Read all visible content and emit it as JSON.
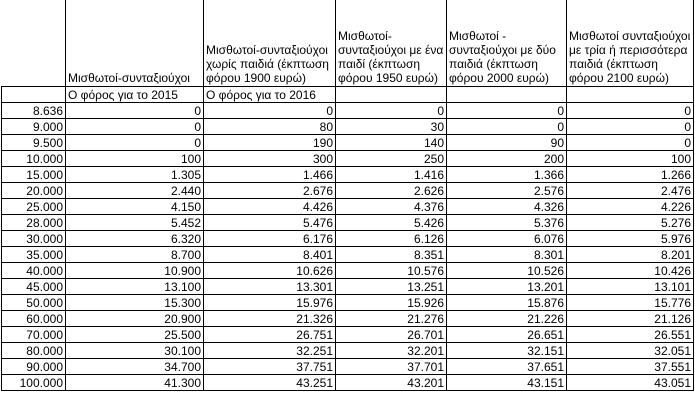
{
  "header": {
    "columns": [
      "",
      "Μισθωτοί-συνταξιούχοι",
      "Μισθωτοί-συνταξιούχοι χωρίς παιδιά (έκπτωση φόρου 1900 ευρώ)",
      "Μισθωτοί-συνταξιούχοι με ένα παιδί (έκπτωση φόρου 1950 ευρώ)",
      "Μισθωτοί - συνταξιούχοι με δύο παιδιά (έκπτωση φόρου 2000 ευρώ)",
      "Μισθωτοί συνταξιούχοι με τρία ή περισσότερα παιδιά (έκπτωση φόρου 2100 ευρώ)"
    ],
    "subheaders": [
      "",
      "Ο φόρος για το 2015",
      "Ο φόρος για το 2016",
      "",
      "",
      ""
    ]
  },
  "rows": [
    [
      "8.636",
      "0",
      "0",
      "0",
      "0",
      "0"
    ],
    [
      "9.000",
      "0",
      "80",
      "30",
      "0",
      "0"
    ],
    [
      "9.500",
      "0",
      "190",
      "140",
      "90",
      "0"
    ],
    [
      "10.000",
      "100",
      "300",
      "250",
      "200",
      "100"
    ],
    [
      "15.000",
      "1.305",
      "1.466",
      "1.416",
      "1.366",
      "1.266"
    ],
    [
      "20.000",
      "2.440",
      "2.676",
      "2.626",
      "2.576",
      "2.476"
    ],
    [
      "25.000",
      "4.150",
      "4.426",
      "4.376",
      "4.326",
      "4.226"
    ],
    [
      "28.000",
      "5.452",
      "5.476",
      "5.426",
      "5.376",
      "5.276"
    ],
    [
      "30.000",
      "6.320",
      "6.176",
      "6.126",
      "6.076",
      "5.976"
    ],
    [
      "35.000",
      "8.700",
      "8.401",
      "8.351",
      "8.301",
      "8.201"
    ],
    [
      "40.000",
      "10.900",
      "10.626",
      "10.576",
      "10.526",
      "10.426"
    ],
    [
      "45.000",
      "13.100",
      "13.301",
      "13.251",
      "13.201",
      "13.101"
    ],
    [
      "50.000",
      "15.300",
      "15.976",
      "15.926",
      "15.876",
      "15.776"
    ],
    [
      "60.000",
      "20.900",
      "21.326",
      "21.276",
      "21.226",
      "21.126"
    ],
    [
      "70.000",
      "25.500",
      "26.751",
      "26.701",
      "26.651",
      "26.551"
    ],
    [
      "80.000",
      "30.100",
      "32.251",
      "32.201",
      "32.151",
      "32.051"
    ],
    [
      "90.000",
      "34.700",
      "37.751",
      "37.701",
      "37.651",
      "37.551"
    ],
    [
      "100.000",
      "41.300",
      "43.251",
      "43.201",
      "43.151",
      "43.051"
    ]
  ]
}
